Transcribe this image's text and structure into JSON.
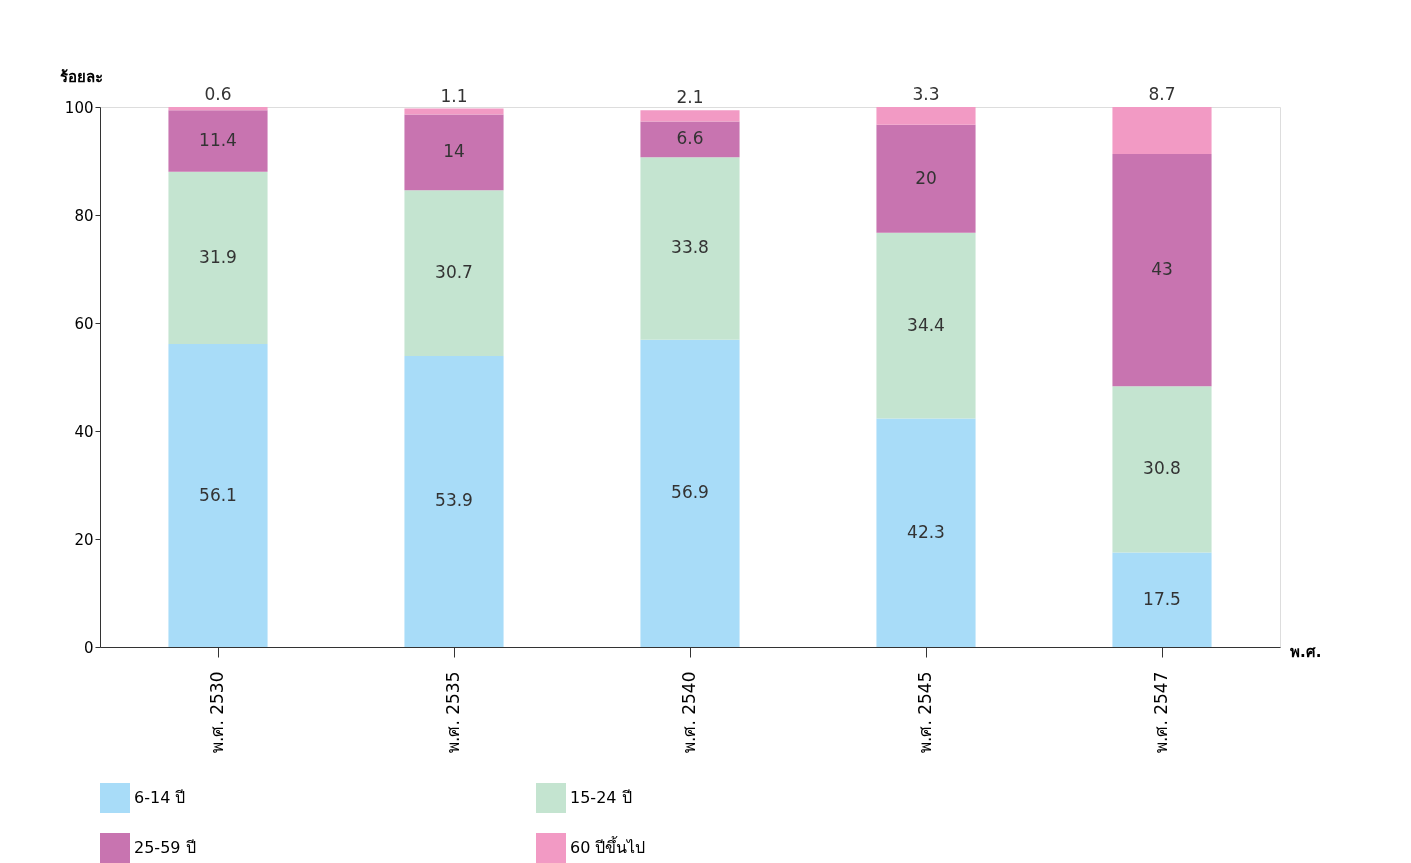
{
  "chart_data": {
    "type": "bar",
    "stacked": true,
    "ylabel": "ร้อยละ",
    "xlabel": "พ.ศ.",
    "categories": [
      "พ.ศ. 2530",
      "พ.ศ. 2535",
      "พ.ศ. 2540",
      "พ.ศ. 2545",
      "พ.ศ. 2547"
    ],
    "series": [
      {
        "name": "6-14 ปี",
        "color": "#a8dcf8",
        "values": [
          56.1,
          53.9,
          56.9,
          42.3,
          17.5
        ]
      },
      {
        "name": "15-24 ปี",
        "color": "#c4e4d0",
        "values": [
          31.9,
          30.7,
          33.8,
          34.4,
          30.8
        ]
      },
      {
        "name": "25-59 ปี",
        "color": "#c874b0",
        "values": [
          11.4,
          14,
          6.6,
          20,
          43
        ]
      },
      {
        "name": "60 ปีขึ้นไป",
        "color": "#f29ac4",
        "values": [
          0.6,
          1.1,
          2.1,
          3.3,
          8.7
        ]
      }
    ],
    "ylim": [
      0,
      100
    ],
    "yticks": [
      0,
      20,
      40,
      60,
      80,
      100
    ],
    "data_labels": true,
    "legend": "bottom",
    "grid": false
  }
}
